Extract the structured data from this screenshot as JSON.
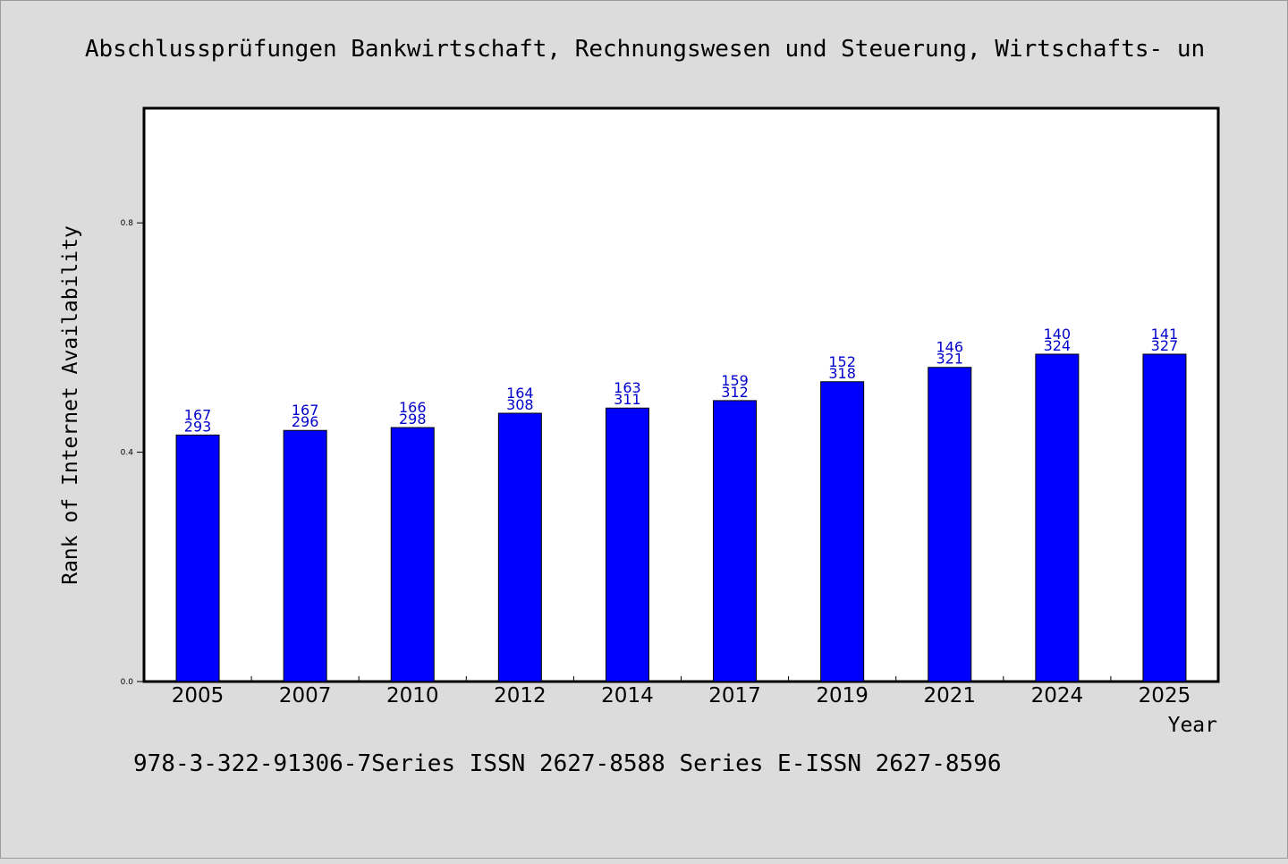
{
  "title": "Abschlussprüfungen Bankwirtschaft, Rechnungswesen und Steuerung, Wirtschafts- un",
  "footer": "978-3-322-91306-7Series ISSN 2627-8588 Series E-ISSN 2627-8596",
  "colors": {
    "background": "#dcdcdc",
    "plot_background": "#ffffff",
    "bar": "#0000ff",
    "data_label": "#0000cc"
  },
  "chart_data": {
    "type": "bar",
    "title": "Abschlussprüfungen Bankwirtschaft, Rechnungswesen und Steuerung, Wirtschafts- un",
    "xlabel": "Year",
    "ylabel": "Rank of Internet Availability",
    "ylim": [
      0,
      1.0
    ],
    "yticks": [
      0.0,
      0.4,
      0.8
    ],
    "ytick_labels": [
      "0.0",
      "0.4",
      "0.8"
    ],
    "grid": false,
    "categories": [
      "2005",
      "2007",
      "2010",
      "2012",
      "2014",
      "2017",
      "2019",
      "2021",
      "2024",
      "2025"
    ],
    "values": [
      0.43,
      0.438,
      0.443,
      0.468,
      0.477,
      0.49,
      0.523,
      0.548,
      0.571,
      0.571
    ],
    "bar_labels_top": [
      "167",
      "167",
      "166",
      "164",
      "163",
      "159",
      "152",
      "146",
      "140",
      "141"
    ],
    "bar_labels_bottom": [
      "293",
      "296",
      "298",
      "308",
      "311",
      "312",
      "318",
      "321",
      "324",
      "327"
    ]
  }
}
